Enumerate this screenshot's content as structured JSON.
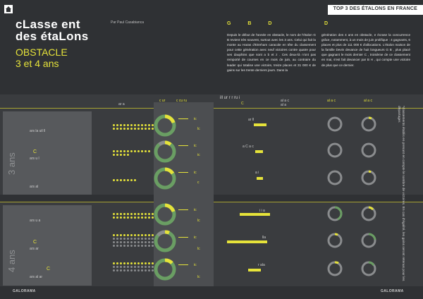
{
  "header": {
    "tag": "TOP 3 DES ÉTALONS EN FRANCE"
  },
  "title": {
    "line1": "cLasse    ent",
    "line2": "des étaLons",
    "sub1": "OBSTACLE",
    "sub2": "3 et 4 ans",
    "author": "Par Paul Casabianca"
  },
  "kicker": {
    "left": "G   B   D",
    "right": "D"
  },
  "body": {
    "col_left": "Depuis le début de l'année en obstacle, le nom de l'étalon G   B   revient très souvent, surtout avec les 3 ans. Celui qui fait la monte au Haras d'Etreham caracole en tête du classement pour cette génération avec neuf victoires contre quatre pour ses dauphins que sont   a   b et   z   . Ces deux-là n'ont pas remporté de courses en ce mois de juin, au contraire du leader qui totalise une victoire, treize places et 31 000 € de gains sur les trente derniers jours. Dans la",
    "col_right": "génération des 4 ans en obstacle,   e   écrase la concurrence grâce, notamment, à un mois de juin prolifique : 4 gagnants, 6 places et plus de 111 000 € d'allocations. L'étalon maison de la famille Devin devance de huit longueurs G   B   , plus placé que gagnant le mois dernier   C   , troisième de ce classement en mai, s'est fait devancer par B   H   , qui compte une victoire de plus que ce dernier."
  },
  "columns": {
    "col1": "ar   a",
    "col2a": "c   ur",
    "col2b": "c   cu ru",
    "col3a": "ill ur   r   r   ru   i",
    "col3b": "C",
    "col4a": "al   a   c",
    "col4b": "al   a",
    "col5a": "al   a   c",
    "col5b": "al   a   c"
  },
  "section3": {
    "age_label": "3 ans",
    "rows": [
      {
        "name_a": "ars   la   uil   ll",
        "short": "ic",
        "short2": "lc",
        "bar_label": "ar   ll",
        "bar": 0.3
      },
      {
        "name_a": "C",
        "name_b": "ars   u   l",
        "short": "ic",
        "short2": "ic",
        "bar_label": "a   C   a   c",
        "bar": 0.18
      },
      {
        "name_a": "ars   al",
        "short": "ic",
        "short2": "c",
        "bar_label": "a   i",
        "bar": 0.15
      }
    ]
  },
  "section4": {
    "age_label": "4 ans",
    "rows": [
      {
        "name_a": "ars   u   a",
        "short": "ic",
        "short2": "lc",
        "bar_label": "i   i   a",
        "bar": 0.72
      },
      {
        "name_a": "C",
        "name_b": "ars   ar",
        "short": "ic",
        "short2": "lc",
        "bar_label": "lla",
        "bar": 0.95
      },
      {
        "name_a": "C",
        "name_b": "ars   al   ar",
        "short": "ic",
        "short2": "lc",
        "bar_label": "r   ala",
        "bar": 0.3
      }
    ]
  },
  "side_note": "*classements établis en prenant en compte le nombre de victoires. En cas d'égalité, les gains seront retenus pour les départager.",
  "footer": {
    "left": "GALORAMA",
    "right": "GALORAMA"
  },
  "colors": {
    "accent": "#e6e33a",
    "ring_green": "#6a9e63",
    "ring_grey": "#8a8c8e",
    "bg": "#2f3134"
  }
}
